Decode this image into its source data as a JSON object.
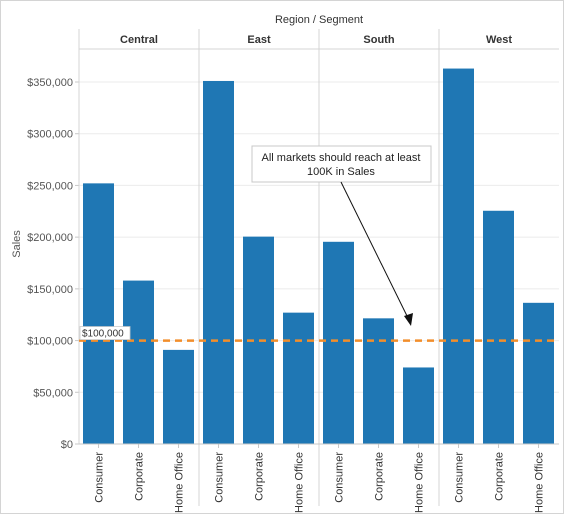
{
  "chart_data": {
    "type": "bar",
    "title": "Region / Segment",
    "ylabel": "Sales",
    "xlabel": "",
    "ylim": [
      0,
      375000
    ],
    "yticks": [
      0,
      50000,
      100000,
      150000,
      200000,
      250000,
      300000,
      350000
    ],
    "ytick_labels": [
      "$0",
      "$50,000",
      "$100,000",
      "$150,000",
      "$200,000",
      "$250,000",
      "$300,000",
      "$350,000"
    ],
    "panels": [
      {
        "region": "Central",
        "categories": [
          "Consumer",
          "Corporate",
          "Home Office"
        ],
        "values": [
          252000,
          158000,
          91000
        ]
      },
      {
        "region": "East",
        "categories": [
          "Consumer",
          "Corporate",
          "Home Office"
        ],
        "values": [
          351000,
          200500,
          127000
        ]
      },
      {
        "region": "South",
        "categories": [
          "Consumer",
          "Corporate",
          "Home Office"
        ],
        "values": [
          195500,
          121500,
          74000
        ]
      },
      {
        "region": "West",
        "categories": [
          "Consumer",
          "Corporate",
          "Home Office"
        ],
        "values": [
          363000,
          225500,
          136500
        ]
      }
    ],
    "reference_line": {
      "value": 100000,
      "label": "$100,000",
      "color": "#f28e2b"
    },
    "annotation": {
      "text_line1": "All markets should reach at least",
      "text_line2": "100K in Sales"
    },
    "bar_color": "#1f77b4",
    "grid": true
  }
}
